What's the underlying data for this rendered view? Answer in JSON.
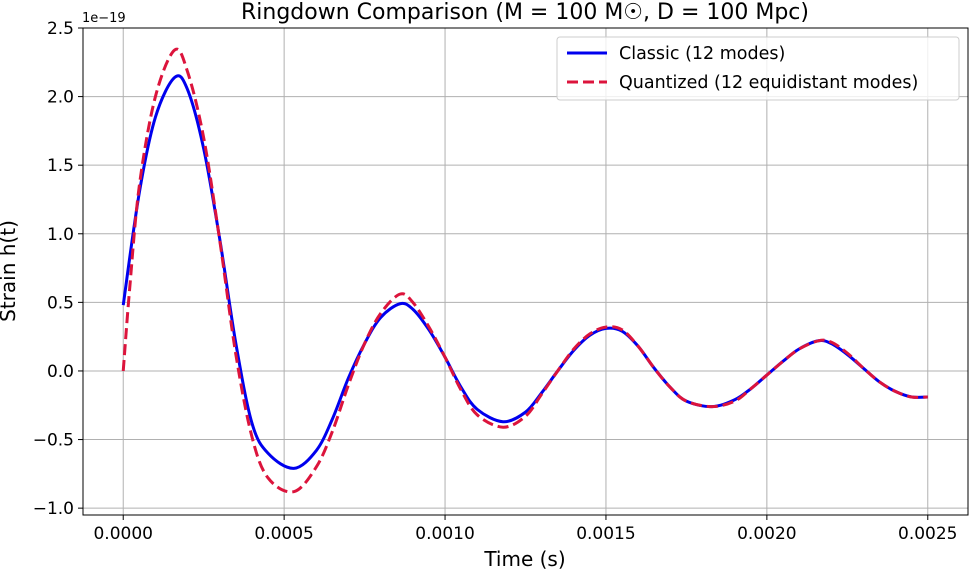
{
  "chart_data": {
    "type": "line",
    "title": "Ringdown Comparison (M = 100 M☉, D = 100 Mpc)",
    "xlabel": "Time (s)",
    "ylabel": "Strain h(t)",
    "y_offset_label": "1e−19",
    "xlim": [
      -0.000125,
      0.002625
    ],
    "ylim": [
      -1.05,
      2.5
    ],
    "x_ticks": [
      {
        "value": 0.0,
        "label": "0.0000"
      },
      {
        "value": 0.0005,
        "label": "0.0005"
      },
      {
        "value": 0.001,
        "label": "0.0010"
      },
      {
        "value": 0.0015,
        "label": "0.0015"
      },
      {
        "value": 0.002,
        "label": "0.0020"
      },
      {
        "value": 0.0025,
        "label": "0.0025"
      }
    ],
    "y_ticks": [
      {
        "value": -1.0,
        "label": "−1.0"
      },
      {
        "value": -0.5,
        "label": "−0.5"
      },
      {
        "value": 0.0,
        "label": "0.0"
      },
      {
        "value": 0.5,
        "label": "0.5"
      },
      {
        "value": 1.0,
        "label": "1.0"
      },
      {
        "value": 1.5,
        "label": "1.5"
      },
      {
        "value": 2.0,
        "label": "2.0"
      },
      {
        "value": 2.5,
        "label": "2.5"
      }
    ],
    "grid": true,
    "legend_position": "top-right",
    "series": [
      {
        "name": "Classic (12 modes)",
        "color": "#0000ee",
        "dash": "solid",
        "x": [
          0.0,
          5e-05,
          0.0001,
          0.00016,
          0.0002,
          0.00025,
          0.0003,
          0.00035,
          0.0004,
          0.00045,
          0.00053,
          0.0006,
          0.00065,
          0.0007,
          0.00075,
          0.0008,
          0.00086,
          0.0009,
          0.00095,
          0.001,
          0.00105,
          0.0011,
          0.00118,
          0.00125,
          0.0013,
          0.00135,
          0.0014,
          0.00145,
          0.0015,
          0.00155,
          0.0016,
          0.00165,
          0.0017,
          0.00175,
          0.00183,
          0.0019,
          0.00195,
          0.002,
          0.00205,
          0.0021,
          0.00216,
          0.0022,
          0.00225,
          0.0023,
          0.00235,
          0.0024,
          0.00245,
          0.0025
        ],
        "y": [
          0.48,
          1.3,
          1.85,
          2.14,
          2.05,
          1.62,
          0.96,
          0.2,
          -0.38,
          -0.6,
          -0.71,
          -0.58,
          -0.35,
          -0.05,
          0.2,
          0.39,
          0.49,
          0.45,
          0.3,
          0.1,
          -0.12,
          -0.28,
          -0.37,
          -0.3,
          -0.16,
          0.0,
          0.15,
          0.26,
          0.31,
          0.29,
          0.18,
          0.02,
          -0.12,
          -0.22,
          -0.26,
          -0.21,
          -0.13,
          -0.03,
          0.07,
          0.16,
          0.22,
          0.2,
          0.12,
          0.02,
          -0.08,
          -0.15,
          -0.19,
          -0.19
        ]
      },
      {
        "name": "Quantized (12 equidistant modes)",
        "color": "#dc143c",
        "dash": "dashed",
        "x": [
          0.0,
          2e-05,
          5e-05,
          0.0001,
          0.00016,
          0.0002,
          0.00025,
          0.0003,
          0.00035,
          0.0004,
          0.00045,
          0.00053,
          0.0006,
          0.00065,
          0.0007,
          0.00075,
          0.0008,
          0.00086,
          0.0009,
          0.00095,
          0.001,
          0.00105,
          0.0011,
          0.00118,
          0.00125,
          0.0013,
          0.00135,
          0.0014,
          0.00145,
          0.0015,
          0.00155,
          0.0016,
          0.00165,
          0.0017,
          0.00175,
          0.00183,
          0.0019,
          0.00195,
          0.002,
          0.00205,
          0.0021,
          0.00216,
          0.0022,
          0.00225,
          0.0023,
          0.00235,
          0.0024,
          0.00245,
          0.0025
        ],
        "y": [
          0.0,
          0.6,
          1.35,
          2.0,
          2.34,
          2.18,
          1.7,
          0.95,
          0.12,
          -0.48,
          -0.78,
          -0.88,
          -0.7,
          -0.44,
          -0.1,
          0.2,
          0.42,
          0.56,
          0.5,
          0.32,
          0.1,
          -0.14,
          -0.32,
          -0.41,
          -0.33,
          -0.17,
          0.0,
          0.16,
          0.27,
          0.32,
          0.3,
          0.18,
          0.02,
          -0.12,
          -0.22,
          -0.26,
          -0.22,
          -0.13,
          -0.03,
          0.07,
          0.16,
          0.22,
          0.21,
          0.13,
          0.02,
          -0.08,
          -0.15,
          -0.19,
          -0.19
        ]
      }
    ]
  }
}
